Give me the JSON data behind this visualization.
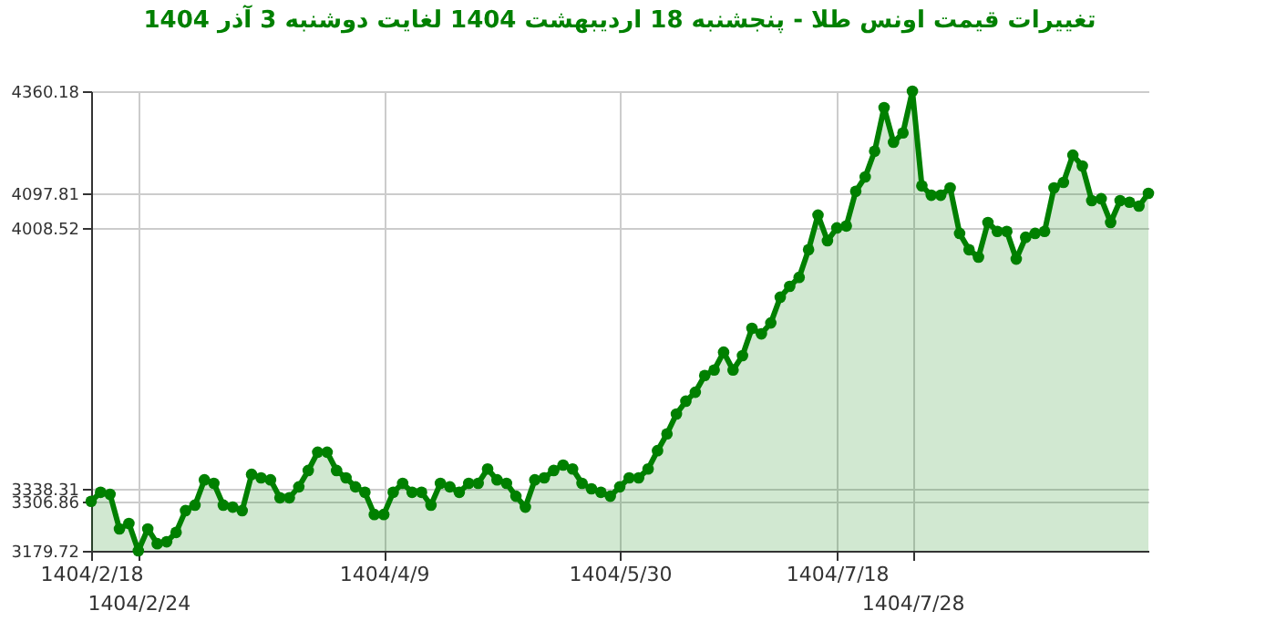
{
  "chart_data": {
    "type": "area",
    "title": "تغییرات قیمت اونس طلا - پنجشنبه  18 اردیبهشت 1404 لغایت  دوشنبه  3 آذر 1404",
    "categories": [
      "1404/2/18",
      null,
      null,
      null,
      null,
      "1404/2/24",
      null,
      null,
      null,
      null,
      null,
      null,
      null,
      null,
      null,
      null,
      null,
      null,
      null,
      null,
      null,
      null,
      null,
      null,
      null,
      null,
      null,
      null,
      null,
      null,
      null,
      "1404/4/9",
      null,
      null,
      null,
      null,
      null,
      null,
      null,
      null,
      null,
      null,
      null,
      null,
      null,
      null,
      null,
      null,
      null,
      null,
      null,
      null,
      null,
      null,
      null,
      null,
      "1404/5/30",
      null,
      null,
      null,
      null,
      null,
      null,
      null,
      null,
      null,
      null,
      null,
      null,
      null,
      null,
      null,
      null,
      null,
      null,
      null,
      null,
      null,
      null,
      "1404/7/18",
      null,
      null,
      null,
      null,
      null,
      null,
      null,
      "1404/7/28",
      null,
      null,
      null,
      null,
      null,
      null,
      null,
      null,
      null,
      null,
      null,
      null,
      null,
      null,
      null,
      null,
      null,
      null,
      null,
      null,
      null,
      null,
      null,
      null,
      null
    ],
    "series": [
      {
        "color": "#008000",
        "values": [
          3306.86,
          3330,
          3325,
          3236,
          3250,
          3179.72,
          3236,
          3198,
          3203,
          3227,
          3283,
          3297,
          3362,
          3353,
          3297,
          3292,
          3283,
          3376,
          3367,
          3362,
          3316,
          3316,
          3344,
          3386,
          3433,
          3433,
          3386,
          3367,
          3344,
          3330,
          3273,
          3273,
          3330,
          3353,
          3330,
          3330,
          3297,
          3353,
          3344,
          3330,
          3353,
          3353,
          3390,
          3362,
          3353,
          3320,
          3292,
          3362,
          3367,
          3386,
          3400,
          3390,
          3353,
          3339,
          3330,
          3320,
          3344,
          3367,
          3367,
          3390,
          3437,
          3480,
          3531,
          3564,
          3587,
          3630,
          3644,
          3690,
          3644,
          3681,
          3751,
          3737,
          3765,
          3831,
          3859,
          3882,
          3953,
          4042,
          3976,
          4009,
          4014,
          4103,
          4140,
          4206,
          4318,
          4229,
          4253,
          4360.18,
          4117,
          4093,
          4093,
          4112,
          3995,
          3953,
          3934,
          4023,
          4000,
          4000,
          3929,
          3985,
          3995,
          4000,
          4112,
          4126,
          4196,
          4168,
          4079,
          4084,
          4023,
          4079,
          4075,
          4065,
          4097.81
        ]
      }
    ],
    "ylim": [
      3179.72,
      4360.18
    ],
    "yticks": [
      3179.72,
      3306.86,
      3338.31,
      4008.52,
      4097.81,
      4360.18
    ],
    "grid": true,
    "marker": "circle"
  }
}
